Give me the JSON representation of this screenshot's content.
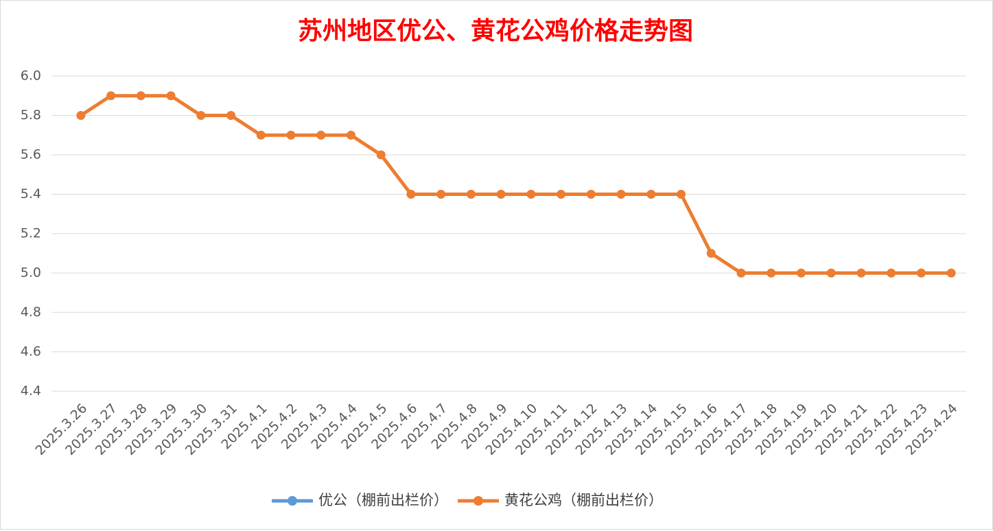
{
  "chart_data": {
    "type": "line",
    "title": "苏州地区优公、黄花公鸡价格走势图",
    "categories": [
      "2025.3.26",
      "2025.3.27",
      "2025.3.28",
      "2025.3.29",
      "2025.3.30",
      "2025.3.31",
      "2025.4.1",
      "2025.4.2",
      "2025.4.3",
      "2025.4.4",
      "2025.4.5",
      "2025.4.6",
      "2025.4.7",
      "2025.4.8",
      "2025.4.9",
      "2025.4.10",
      "2025.4.11",
      "2025.4.12",
      "2025.4.13",
      "2025.4.14",
      "2025.4.15",
      "2025.4.16",
      "2025.4.17",
      "2025.4.18",
      "2025.4.19",
      "2025.4.20",
      "2025.4.21",
      "2025.4.22",
      "2025.4.23",
      "2025.4.24"
    ],
    "series": [
      {
        "name": "优公（棚前出栏价）",
        "color": "#5b9bd5",
        "values": [
          null,
          null,
          null,
          null,
          null,
          null,
          null,
          null,
          null,
          null,
          null,
          null,
          null,
          null,
          null,
          null,
          null,
          null,
          null,
          null,
          null,
          null,
          null,
          null,
          null,
          null,
          null,
          null,
          null,
          null
        ]
      },
      {
        "name": "黄花公鸡（棚前出栏价）",
        "color": "#ed7d31",
        "values": [
          5.8,
          5.9,
          5.9,
          5.9,
          5.8,
          5.8,
          5.7,
          5.7,
          5.7,
          5.7,
          5.6,
          5.4,
          5.4,
          5.4,
          5.4,
          5.4,
          5.4,
          5.4,
          5.4,
          5.4,
          5.4,
          5.1,
          5.0,
          5.0,
          5.0,
          5.0,
          5.0,
          5.0,
          5.0,
          5.0
        ]
      }
    ],
    "ylim": [
      4.4,
      6.0
    ],
    "yticks": [
      4.4,
      4.6,
      4.8,
      {
        "value": 5.0,
        "label": "5.0"
      },
      5.2,
      5.4,
      5.6,
      5.8,
      {
        "value": 6.0,
        "label": "6.0"
      }
    ],
    "grid": true,
    "legend": "bottom"
  }
}
